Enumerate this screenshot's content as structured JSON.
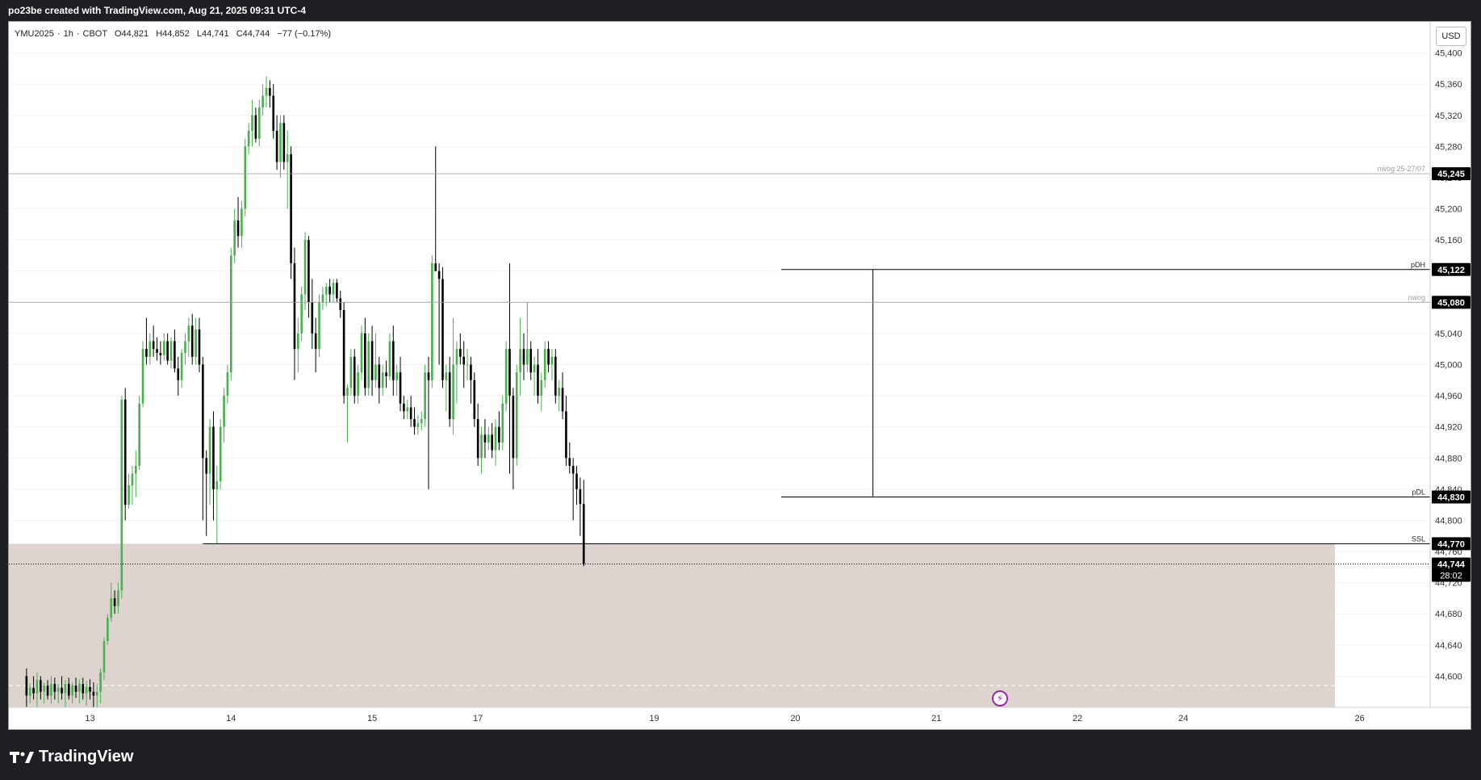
{
  "header": {
    "credit": "po23be created with TradingView.com, Aug 21, 2025 09:31 UTC-4"
  },
  "legend": {
    "symbol": "YMU2025",
    "interval": "1h",
    "exchange": "CBOT",
    "open": "O44,821",
    "high": "H44,852",
    "low": "L44,741",
    "close": "C44,744",
    "change": "−77 (−0.17%)"
  },
  "currency_button": "USD",
  "brand": {
    "name": "TradingView"
  },
  "colors": {
    "background": "#ffffff",
    "up": "#4caf50",
    "down": "#000000",
    "zone_fill": "#d7cdc8",
    "grid": "#f2f2f2",
    "level_line": "#000000",
    "nwog_line": "#9e9e9e",
    "alert_icon": "#9c27b0"
  },
  "chart_data": {
    "type": "candlestick",
    "ylim": [
      44560,
      45440
    ],
    "y_ticks": [
      44600,
      44640,
      44680,
      44720,
      44760,
      44800,
      44840,
      44880,
      44920,
      44960,
      45000,
      45040,
      45080,
      45120,
      45160,
      45200,
      45240,
      45280,
      45320,
      45360,
      45400
    ],
    "y_tick_labels": [
      "44,600",
      "44,640",
      "44,680",
      "44,720",
      "44,760",
      "44,800",
      "44,840",
      "44,880",
      "44,920",
      "44,960",
      "45,000",
      "45,040",
      "45,080",
      "45,120",
      "45,160",
      "45,200",
      "45,240",
      "45,280",
      "45,320",
      "45,360",
      "45,400"
    ],
    "x_labels": [
      {
        "label": "13",
        "bar": 18
      },
      {
        "label": "14",
        "bar": 58
      },
      {
        "label": "15",
        "bar": 98
      },
      {
        "label": "17",
        "bar": 128
      },
      {
        "label": "19",
        "bar": 178
      },
      {
        "label": "20",
        "bar": 218
      },
      {
        "label": "21",
        "bar": 258
      },
      {
        "label": "22",
        "bar": 298
      },
      {
        "label": "24",
        "bar": 328
      },
      {
        "label": "26",
        "bar": 378
      }
    ],
    "bar_range": [
      -5,
      398
    ],
    "levels": [
      {
        "name": "nwog 25-27/07",
        "price": 45245,
        "price_label": "45,245",
        "style": "thin-gray",
        "from_bar": -5
      },
      {
        "name": "pDH",
        "price": 45122,
        "price_label": "45,122",
        "style": "black",
        "from_bar": 214
      },
      {
        "name": "nwog",
        "price": 45080,
        "price_label": "45,080",
        "style": "thin-gray",
        "from_bar": -5
      },
      {
        "name": "pDL",
        "price": 44830,
        "price_label": "44,830",
        "style": "black",
        "from_bar": 214
      },
      {
        "name": "SSL",
        "price": 44770,
        "price_label": "44,770",
        "style": "black",
        "from_bar": 50
      }
    ],
    "current_price": {
      "price": 44744,
      "label": "44,744",
      "countdown": "28:02"
    },
    "zone": {
      "from_bar": -5,
      "to_bar": 371,
      "top": 44770,
      "bottom": 44560,
      "dashed_line": 44588
    },
    "vertical_markers": [
      {
        "bar": 240,
        "top": 45122,
        "bottom": 44830
      }
    ],
    "candles": [
      {
        "o": 44600,
        "h": 44610,
        "l": 44560,
        "c": 44575
      },
      {
        "o": 44575,
        "h": 44590,
        "l": 44565,
        "c": 44585
      },
      {
        "o": 44585,
        "h": 44600,
        "l": 44570,
        "c": 44578
      },
      {
        "o": 44578,
        "h": 44605,
        "l": 44560,
        "c": 44595
      },
      {
        "o": 44595,
        "h": 44600,
        "l": 44570,
        "c": 44580
      },
      {
        "o": 44580,
        "h": 44592,
        "l": 44565,
        "c": 44588
      },
      {
        "o": 44588,
        "h": 44595,
        "l": 44570,
        "c": 44575
      },
      {
        "o": 44575,
        "h": 44600,
        "l": 44565,
        "c": 44590
      },
      {
        "o": 44590,
        "h": 44598,
        "l": 44570,
        "c": 44580
      },
      {
        "o": 44580,
        "h": 44590,
        "l": 44565,
        "c": 44585
      },
      {
        "o": 44585,
        "h": 44600,
        "l": 44570,
        "c": 44578
      },
      {
        "o": 44578,
        "h": 44595,
        "l": 44560,
        "c": 44590
      },
      {
        "o": 44590,
        "h": 44598,
        "l": 44570,
        "c": 44575
      },
      {
        "o": 44575,
        "h": 44592,
        "l": 44565,
        "c": 44588
      },
      {
        "o": 44588,
        "h": 44598,
        "l": 44572,
        "c": 44580
      },
      {
        "o": 44580,
        "h": 44596,
        "l": 44565,
        "c": 44590
      },
      {
        "o": 44590,
        "h": 44598,
        "l": 44570,
        "c": 44578
      },
      {
        "o": 44578,
        "h": 44594,
        "l": 44562,
        "c": 44586
      },
      {
        "o": 44586,
        "h": 44596,
        "l": 44570,
        "c": 44580
      },
      {
        "o": 44580,
        "h": 44592,
        "l": 44560,
        "c": 44575
      },
      {
        "o": 44575,
        "h": 44590,
        "l": 44560,
        "c": 44580
      },
      {
        "o": 44580,
        "h": 44610,
        "l": 44565,
        "c": 44605
      },
      {
        "o": 44605,
        "h": 44650,
        "l": 44595,
        "c": 44645
      },
      {
        "o": 44645,
        "h": 44680,
        "l": 44640,
        "c": 44675
      },
      {
        "o": 44675,
        "h": 44720,
        "l": 44670,
        "c": 44700
      },
      {
        "o": 44700,
        "h": 44710,
        "l": 44680,
        "c": 44690
      },
      {
        "o": 44690,
        "h": 44720,
        "l": 44680,
        "c": 44710
      },
      {
        "o": 44710,
        "h": 44960,
        "l": 44700,
        "c": 44955
      },
      {
        "o": 44955,
        "h": 44970,
        "l": 44800,
        "c": 44820
      },
      {
        "o": 44820,
        "h": 44860,
        "l": 44815,
        "c": 44845
      },
      {
        "o": 44845,
        "h": 44870,
        "l": 44820,
        "c": 44860
      },
      {
        "o": 44860,
        "h": 44890,
        "l": 44830,
        "c": 44870
      },
      {
        "o": 44870,
        "h": 44960,
        "l": 44865,
        "c": 44950
      },
      {
        "o": 44950,
        "h": 45030,
        "l": 44945,
        "c": 45020
      },
      {
        "o": 45020,
        "h": 45060,
        "l": 45000,
        "c": 45010
      },
      {
        "o": 45010,
        "h": 45040,
        "l": 45000,
        "c": 45030
      },
      {
        "o": 45030,
        "h": 45050,
        "l": 45010,
        "c": 45020
      },
      {
        "o": 45020,
        "h": 45035,
        "l": 45005,
        "c": 45015
      },
      {
        "o": 45015,
        "h": 45030,
        "l": 45000,
        "c": 45012
      },
      {
        "o": 45012,
        "h": 45040,
        "l": 45005,
        "c": 45030
      },
      {
        "o": 45030,
        "h": 45040,
        "l": 45000,
        "c": 45005
      },
      {
        "o": 45005,
        "h": 45035,
        "l": 44995,
        "c": 45030
      },
      {
        "o": 45030,
        "h": 45045,
        "l": 44990,
        "c": 44995
      },
      {
        "o": 44995,
        "h": 45010,
        "l": 44960,
        "c": 44980
      },
      {
        "o": 44980,
        "h": 45020,
        "l": 44970,
        "c": 45015
      },
      {
        "o": 45015,
        "h": 45040,
        "l": 45000,
        "c": 45030
      },
      {
        "o": 45030,
        "h": 45060,
        "l": 45010,
        "c": 45050
      },
      {
        "o": 45050,
        "h": 45065,
        "l": 45000,
        "c": 45010
      },
      {
        "o": 45010,
        "h": 45060,
        "l": 45000,
        "c": 45045
      },
      {
        "o": 45045,
        "h": 45060,
        "l": 44990,
        "c": 45000
      },
      {
        "o": 45000,
        "h": 45010,
        "l": 44800,
        "c": 44880
      },
      {
        "o": 44880,
        "h": 44890,
        "l": 44780,
        "c": 44860
      },
      {
        "o": 44860,
        "h": 44930,
        "l": 44820,
        "c": 44920
      },
      {
        "o": 44920,
        "h": 44940,
        "l": 44800,
        "c": 44840
      },
      {
        "o": 44840,
        "h": 44870,
        "l": 44770,
        "c": 44850
      },
      {
        "o": 44850,
        "h": 44930,
        "l": 44840,
        "c": 44920
      },
      {
        "o": 44920,
        "h": 44970,
        "l": 44900,
        "c": 44960
      },
      {
        "o": 44960,
        "h": 45000,
        "l": 44950,
        "c": 44990
      },
      {
        "o": 44990,
        "h": 45150,
        "l": 44980,
        "c": 45140
      },
      {
        "o": 45140,
        "h": 45200,
        "l": 45130,
        "c": 45185
      },
      {
        "o": 45185,
        "h": 45215,
        "l": 45150,
        "c": 45165
      },
      {
        "o": 45165,
        "h": 45210,
        "l": 45150,
        "c": 45200
      },
      {
        "o": 45200,
        "h": 45290,
        "l": 45190,
        "c": 45280
      },
      {
        "o": 45280,
        "h": 45310,
        "l": 45270,
        "c": 45300
      },
      {
        "o": 45300,
        "h": 45340,
        "l": 45280,
        "c": 45320
      },
      {
        "o": 45320,
        "h": 45330,
        "l": 45285,
        "c": 45290
      },
      {
        "o": 45290,
        "h": 45340,
        "l": 45280,
        "c": 45330
      },
      {
        "o": 45330,
        "h": 45360,
        "l": 45320,
        "c": 45345
      },
      {
        "o": 45345,
        "h": 45370,
        "l": 45330,
        "c": 45355
      },
      {
        "o": 45355,
        "h": 45365,
        "l": 45330,
        "c": 45345
      },
      {
        "o": 45345,
        "h": 45360,
        "l": 45290,
        "c": 45300
      },
      {
        "o": 45300,
        "h": 45320,
        "l": 45250,
        "c": 45260
      },
      {
        "o": 45260,
        "h": 45320,
        "l": 45240,
        "c": 45310
      },
      {
        "o": 45310,
        "h": 45320,
        "l": 45250,
        "c": 45260
      },
      {
        "o": 45260,
        "h": 45300,
        "l": 45200,
        "c": 45270
      },
      {
        "o": 45270,
        "h": 45280,
        "l": 45110,
        "c": 45130
      },
      {
        "o": 45130,
        "h": 45150,
        "l": 44980,
        "c": 45020
      },
      {
        "o": 45020,
        "h": 45060,
        "l": 44990,
        "c": 45040
      },
      {
        "o": 45040,
        "h": 45100,
        "l": 45030,
        "c": 45090
      },
      {
        "o": 45090,
        "h": 45170,
        "l": 45070,
        "c": 45160
      },
      {
        "o": 45160,
        "h": 45165,
        "l": 45060,
        "c": 45080
      },
      {
        "o": 45080,
        "h": 45110,
        "l": 45020,
        "c": 45040
      },
      {
        "o": 45040,
        "h": 45060,
        "l": 44990,
        "c": 45020
      },
      {
        "o": 45020,
        "h": 45090,
        "l": 45010,
        "c": 45080
      },
      {
        "o": 45080,
        "h": 45100,
        "l": 45070,
        "c": 45090
      },
      {
        "o": 45090,
        "h": 45105,
        "l": 45075,
        "c": 45100
      },
      {
        "o": 45100,
        "h": 45110,
        "l": 45080,
        "c": 45090
      },
      {
        "o": 45090,
        "h": 45110,
        "l": 45080,
        "c": 45105
      },
      {
        "o": 45105,
        "h": 45110,
        "l": 45080,
        "c": 45085
      },
      {
        "o": 45085,
        "h": 45095,
        "l": 45060,
        "c": 45070
      },
      {
        "o": 45070,
        "h": 45080,
        "l": 44950,
        "c": 44960
      },
      {
        "o": 44960,
        "h": 44975,
        "l": 44900,
        "c": 44970
      },
      {
        "o": 44970,
        "h": 45020,
        "l": 44960,
        "c": 45010
      },
      {
        "o": 45010,
        "h": 45020,
        "l": 44950,
        "c": 44960
      },
      {
        "o": 44960,
        "h": 45000,
        "l": 44950,
        "c": 44990
      },
      {
        "o": 44990,
        "h": 45050,
        "l": 44980,
        "c": 45040
      },
      {
        "o": 45040,
        "h": 45060,
        "l": 44960,
        "c": 44970
      },
      {
        "o": 44970,
        "h": 45040,
        "l": 44960,
        "c": 45030
      },
      {
        "o": 45030,
        "h": 45050,
        "l": 44960,
        "c": 44980
      },
      {
        "o": 44980,
        "h": 45040,
        "l": 44970,
        "c": 45000
      },
      {
        "o": 45000,
        "h": 45010,
        "l": 44950,
        "c": 44970
      },
      {
        "o": 44970,
        "h": 45000,
        "l": 44960,
        "c": 44990
      },
      {
        "o": 44990,
        "h": 45005,
        "l": 44970,
        "c": 44985
      },
      {
        "o": 44985,
        "h": 45040,
        "l": 44980,
        "c": 45030
      },
      {
        "o": 45030,
        "h": 45050,
        "l": 44960,
        "c": 44980
      },
      {
        "o": 44980,
        "h": 45000,
        "l": 44960,
        "c": 44990
      },
      {
        "o": 44990,
        "h": 45010,
        "l": 44940,
        "c": 44950
      },
      {
        "o": 44950,
        "h": 44960,
        "l": 44930,
        "c": 44940
      },
      {
        "o": 44940,
        "h": 44955,
        "l": 44930,
        "c": 44945
      },
      {
        "o": 44945,
        "h": 44960,
        "l": 44920,
        "c": 44930
      },
      {
        "o": 44930,
        "h": 44945,
        "l": 44910,
        "c": 44920
      },
      {
        "o": 44920,
        "h": 44935,
        "l": 44910,
        "c": 44925
      },
      {
        "o": 44925,
        "h": 44940,
        "l": 44915,
        "c": 44930
      },
      {
        "o": 44930,
        "h": 45000,
        "l": 44920,
        "c": 44990
      },
      {
        "o": 44990,
        "h": 45010,
        "l": 44840,
        "c": 44980
      },
      {
        "o": 44980,
        "h": 45140,
        "l": 44970,
        "c": 45130
      },
      {
        "o": 45130,
        "h": 45280,
        "l": 45120,
        "c": 45120
      },
      {
        "o": 45120,
        "h": 45130,
        "l": 45000,
        "c": 45110
      },
      {
        "o": 45110,
        "h": 45125,
        "l": 44970,
        "c": 44980
      },
      {
        "o": 44980,
        "h": 45000,
        "l": 44940,
        "c": 44990
      },
      {
        "o": 44990,
        "h": 45010,
        "l": 44920,
        "c": 44930
      },
      {
        "o": 44930,
        "h": 45060,
        "l": 44910,
        "c": 45000
      },
      {
        "o": 45000,
        "h": 45030,
        "l": 44950,
        "c": 45020
      },
      {
        "o": 45020,
        "h": 45040,
        "l": 45000,
        "c": 45010
      },
      {
        "o": 45010,
        "h": 45030,
        "l": 44970,
        "c": 45000
      },
      {
        "o": 45000,
        "h": 45020,
        "l": 44980,
        "c": 45000
      }
    ],
    "candles_b": [
      {
        "o": 45000,
        "h": 45010,
        "l": 44950,
        "c": 44980
      },
      {
        "o": 44980,
        "h": 44990,
        "l": 44920,
        "c": 44930
      },
      {
        "o": 44930,
        "h": 44950,
        "l": 44870,
        "c": 44880
      },
      {
        "o": 44880,
        "h": 44920,
        "l": 44860,
        "c": 44910
      },
      {
        "o": 44910,
        "h": 44930,
        "l": 44880,
        "c": 44900
      },
      {
        "o": 44900,
        "h": 44920,
        "l": 44890,
        "c": 44910
      },
      {
        "o": 44910,
        "h": 44925,
        "l": 44880,
        "c": 44890
      },
      {
        "o": 44890,
        "h": 44930,
        "l": 44870,
        "c": 44920
      },
      {
        "o": 44920,
        "h": 44940,
        "l": 44890,
        "c": 44900
      },
      {
        "o": 44900,
        "h": 44960,
        "l": 44890,
        "c": 44950
      },
      {
        "o": 44950,
        "h": 45030,
        "l": 44940,
        "c": 45020
      },
      {
        "o": 45020,
        "h": 45130,
        "l": 44860,
        "c": 44960
      },
      {
        "o": 44960,
        "h": 44970,
        "l": 44840,
        "c": 44880
      },
      {
        "o": 44880,
        "h": 45000,
        "l": 44870,
        "c": 44990
      },
      {
        "o": 44990,
        "h": 45060,
        "l": 44960,
        "c": 45020
      },
      {
        "o": 45020,
        "h": 45040,
        "l": 44980,
        "c": 45000
      },
      {
        "o": 45000,
        "h": 45080,
        "l": 44990,
        "c": 45020
      },
      {
        "o": 45020,
        "h": 45030,
        "l": 44980,
        "c": 44990
      },
      {
        "o": 44990,
        "h": 45010,
        "l": 44960,
        "c": 45000
      },
      {
        "o": 45000,
        "h": 45020,
        "l": 44950,
        "c": 44960
      },
      {
        "o": 44960,
        "h": 44990,
        "l": 44940,
        "c": 44980
      },
      {
        "o": 44980,
        "h": 45030,
        "l": 44970,
        "c": 45020
      },
      {
        "o": 45020,
        "h": 45030,
        "l": 44990,
        "c": 45000
      },
      {
        "o": 45000,
        "h": 45020,
        "l": 44980,
        "c": 45010
      },
      {
        "o": 45010,
        "h": 45020,
        "l": 44950,
        "c": 44960
      },
      {
        "o": 44960,
        "h": 44980,
        "l": 44940,
        "c": 44970
      },
      {
        "o": 44970,
        "h": 44990,
        "l": 44930,
        "c": 44940
      },
      {
        "o": 44940,
        "h": 44960,
        "l": 44870,
        "c": 44880
      },
      {
        "o": 44880,
        "h": 44900,
        "l": 44860,
        "c": 44870
      },
      {
        "o": 44870,
        "h": 44880,
        "l": 44800,
        "c": 44860
      },
      {
        "o": 44860,
        "h": 44870,
        "l": 44820,
        "c": 44840
      },
      {
        "o": 44840,
        "h": 44855,
        "l": 44780,
        "c": 44821
      },
      {
        "o": 44821,
        "h": 44852,
        "l": 44741,
        "c": 44744
      }
    ]
  }
}
